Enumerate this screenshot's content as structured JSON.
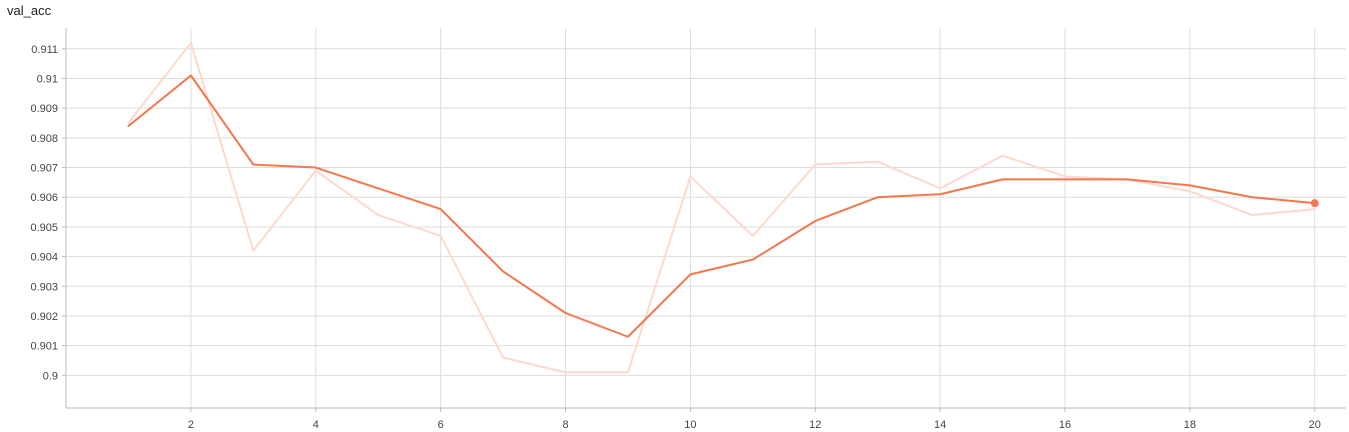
{
  "chart_data": {
    "type": "line",
    "title": "val_acc",
    "xlabel": "",
    "ylabel": "",
    "x": [
      1,
      2,
      3,
      4,
      5,
      6,
      7,
      8,
      9,
      10,
      11,
      12,
      13,
      14,
      15,
      16,
      17,
      18,
      19,
      20
    ],
    "xlim": [
      0,
      20.5
    ],
    "ylim": [
      0.8989,
      0.9117
    ],
    "xticks": [
      "2",
      "4",
      "6",
      "8",
      "10",
      "12",
      "14",
      "16",
      "18",
      "20"
    ],
    "yticks": [
      "0.9",
      "0.901",
      "0.902",
      "0.903",
      "0.904",
      "0.905",
      "0.906",
      "0.907",
      "0.908",
      "0.909",
      "0.91",
      "0.911"
    ],
    "grid": true,
    "series": [
      {
        "role": "raw",
        "color": "#fdd9ce",
        "values": [
          0.9085,
          0.9112,
          0.9042,
          0.9069,
          0.9054,
          0.9047,
          0.9006,
          0.9001,
          0.9001,
          0.9067,
          0.9047,
          0.9071,
          0.9072,
          0.9063,
          0.9074,
          0.9067,
          0.9066,
          0.9062,
          0.9054,
          0.9056
        ]
      },
      {
        "role": "smoothed",
        "color": "#f4774c",
        "values": [
          0.9084,
          0.9101,
          0.9071,
          0.907,
          0.9063,
          0.9056,
          0.9035,
          0.9021,
          0.9013,
          0.9034,
          0.9039,
          0.9052,
          0.906,
          0.9061,
          0.9066,
          0.9066,
          0.9066,
          0.9064,
          0.906,
          0.9058
        ]
      }
    ]
  }
}
